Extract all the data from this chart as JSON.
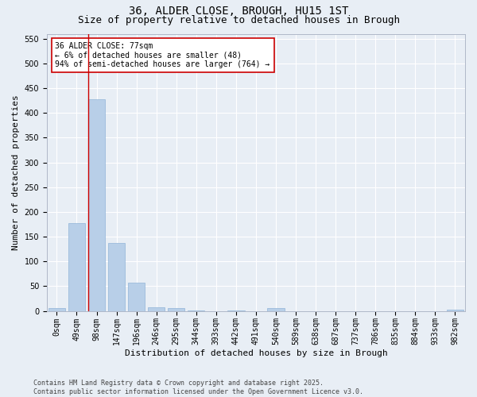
{
  "title_line1": "36, ALDER CLOSE, BROUGH, HU15 1ST",
  "title_line2": "Size of property relative to detached houses in Brough",
  "xlabel": "Distribution of detached houses by size in Brough",
  "ylabel": "Number of detached properties",
  "bar_color": "#b8cfe8",
  "bar_edge_color": "#90b4d8",
  "background_color": "#e8eef5",
  "grid_color": "#ffffff",
  "categories": [
    "0sqm",
    "49sqm",
    "98sqm",
    "147sqm",
    "196sqm",
    "246sqm",
    "295sqm",
    "344sqm",
    "393sqm",
    "442sqm",
    "491sqm",
    "540sqm",
    "589sqm",
    "638sqm",
    "687sqm",
    "737sqm",
    "786sqm",
    "835sqm",
    "884sqm",
    "933sqm",
    "982sqm"
  ],
  "values": [
    5,
    178,
    428,
    138,
    57,
    8,
    6,
    1,
    0,
    1,
    0,
    5,
    0,
    0,
    0,
    0,
    0,
    0,
    0,
    0,
    2
  ],
  "ylim": [
    0,
    560
  ],
  "yticks": [
    0,
    50,
    100,
    150,
    200,
    250,
    300,
    350,
    400,
    450,
    500,
    550
  ],
  "annotation_text": "36 ALDER CLOSE: 77sqm\n← 6% of detached houses are smaller (48)\n94% of semi-detached houses are larger (764) →",
  "annotation_box_color": "#ffffff",
  "annotation_border_color": "#cc0000",
  "vline_color": "#cc0000",
  "vline_x": 1.58,
  "footer_text": "Contains HM Land Registry data © Crown copyright and database right 2025.\nContains public sector information licensed under the Open Government Licence v3.0.",
  "title_fontsize": 10,
  "subtitle_fontsize": 9,
  "axis_label_fontsize": 8,
  "tick_fontsize": 7,
  "annotation_fontsize": 7,
  "footer_fontsize": 6
}
